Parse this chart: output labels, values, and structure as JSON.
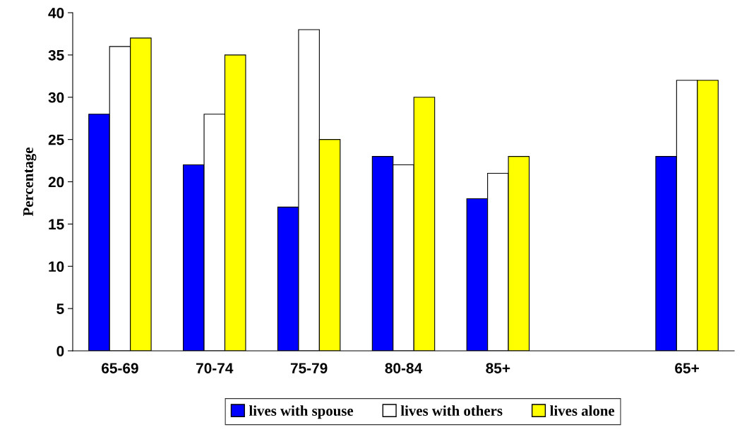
{
  "chart_data": {
    "type": "bar",
    "ylabel": "Percentage",
    "categories": [
      "65-69",
      "70-74",
      "75-79",
      "80-84",
      "85+",
      null,
      "65+"
    ],
    "series": [
      {
        "name": "lives with spouse",
        "color": "#0000ff",
        "values": [
          28,
          22,
          17,
          23,
          18,
          null,
          23
        ]
      },
      {
        "name": "lives with others",
        "color": "#ffffff",
        "values": [
          36,
          28,
          38,
          22,
          21,
          null,
          32
        ]
      },
      {
        "name": "lives alone",
        "color": "#ffff00",
        "values": [
          37,
          35,
          25,
          30,
          23,
          null,
          32
        ]
      }
    ],
    "ylim": [
      0,
      40
    ],
    "yticks": [
      0,
      5,
      10,
      15,
      20,
      25,
      30,
      35,
      40
    ],
    "grid": false,
    "legend": "bottom"
  }
}
